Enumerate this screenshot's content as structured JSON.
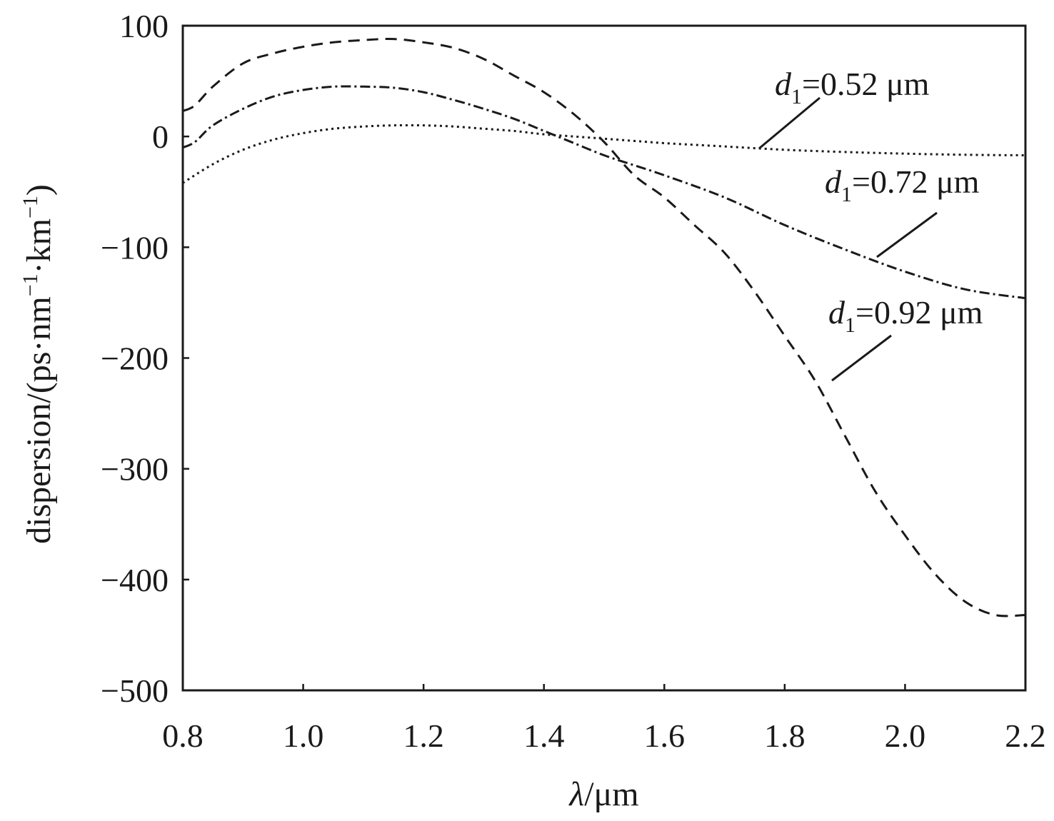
{
  "chart_data": {
    "type": "line",
    "title": "",
    "xlabel_symbol": "λ",
    "xlabel_unit": "/μm",
    "ylabel_prefix": "dispersion/(ps·nm",
    "ylabel_sup1": "−1",
    "ylabel_mid": "·km",
    "ylabel_sup2": "−1",
    "ylabel_suffix": ")",
    "xlim": [
      0.8,
      2.2
    ],
    "ylim": [
      -500,
      100
    ],
    "xticks": [
      0.8,
      1.0,
      1.2,
      1.4,
      1.6,
      1.8,
      2.0,
      2.2
    ],
    "xtick_labels": [
      "0.8",
      "1.0",
      "1.2",
      "1.4",
      "1.6",
      "1.8",
      "2.0",
      "2.2"
    ],
    "yticks": [
      100,
      0,
      -100,
      -200,
      -300,
      -400,
      -500
    ],
    "ytick_labels": [
      "100",
      "0",
      "−100",
      "−200",
      "−300",
      "−400",
      "−500"
    ],
    "grid": false,
    "series": [
      {
        "name": "d1=0.52 μm",
        "label_var": "d",
        "label_sub": "1",
        "label_rest": "=0.52 μm",
        "style": "dotted",
        "x": [
          0.8,
          0.85,
          0.9,
          0.95,
          1.0,
          1.05,
          1.1,
          1.15,
          1.2,
          1.25,
          1.3,
          1.35,
          1.4,
          1.45,
          1.5,
          1.55,
          1.6,
          1.7,
          1.8,
          1.9,
          2.0,
          2.1,
          2.2
        ],
        "y": [
          -42,
          -25,
          -12,
          -3,
          3,
          7,
          9,
          10,
          10,
          9,
          7,
          5,
          2,
          0,
          -2,
          -4,
          -6,
          -9,
          -12,
          -14,
          -15.5,
          -16.5,
          -17
        ]
      },
      {
        "name": "d1=0.72 μm",
        "label_var": "d",
        "label_sub": "1",
        "label_rest": "=0.72 μm",
        "style": "dashdot",
        "x": [
          0.8,
          0.82,
          0.85,
          0.9,
          0.95,
          1.0,
          1.05,
          1.1,
          1.15,
          1.2,
          1.25,
          1.3,
          1.35,
          1.4,
          1.45,
          1.5,
          1.55,
          1.6,
          1.7,
          1.8,
          1.9,
          2.0,
          2.1,
          2.2
        ],
        "y": [
          -10,
          -5,
          10,
          25,
          36,
          42,
          45,
          45,
          44,
          40,
          33,
          25,
          16,
          5,
          -6,
          -17,
          -26,
          -35,
          -55,
          -80,
          -102,
          -122,
          -138,
          -146
        ]
      },
      {
        "name": "d1=0.92 μm",
        "label_var": "d",
        "label_sub": "1",
        "label_rest": "=0.92 μm",
        "style": "dashed",
        "x": [
          0.8,
          0.82,
          0.85,
          0.9,
          0.95,
          1.0,
          1.05,
          1.1,
          1.15,
          1.2,
          1.25,
          1.3,
          1.35,
          1.4,
          1.45,
          1.5,
          1.55,
          1.6,
          1.65,
          1.7,
          1.75,
          1.8,
          1.85,
          1.9,
          1.95,
          2.0,
          2.05,
          2.1,
          2.15,
          2.2
        ],
        "y": [
          23,
          28,
          45,
          66,
          75,
          81,
          85,
          87,
          88,
          85,
          80,
          70,
          55,
          40,
          20,
          -5,
          -35,
          -55,
          -80,
          -105,
          -140,
          -180,
          -220,
          -270,
          -320,
          -360,
          -395,
          -420,
          -432,
          -432
        ]
      }
    ]
  }
}
